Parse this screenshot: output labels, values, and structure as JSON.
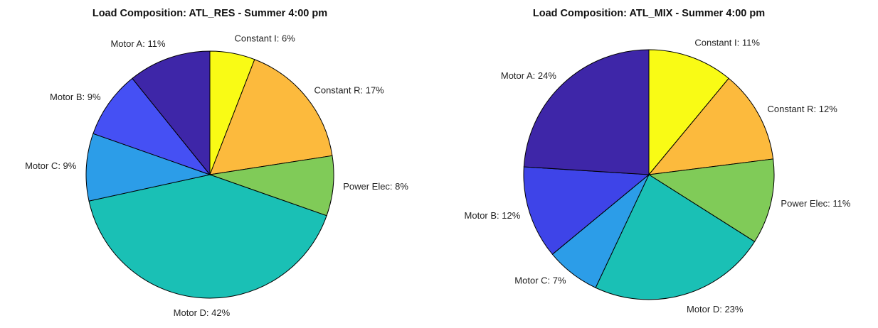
{
  "chart_data": [
    {
      "type": "pie",
      "title": "Load Composition: ATL_RES - Summer 4:00 pm",
      "values": [
        6,
        17,
        8,
        42,
        9,
        9,
        11
      ],
      "value_labels": [
        "Constant I: 6%",
        "Constant R: 17%",
        "Power Elec: 8%",
        "Motor D: 42%",
        "Motor C: 9%",
        "Motor B: 9%",
        "Motor A: 11%"
      ],
      "colors": [
        "#f9fb15",
        "#fcba3d",
        "#80cb58",
        "#1ac0b5",
        "#2c9de8",
        "#4550f4",
        "#3e26a8"
      ]
    },
    {
      "type": "pie",
      "title": "Load Composition: ATL_MIX - Summer 4:00 pm",
      "values": [
        11,
        12,
        11,
        23,
        7,
        12,
        24
      ],
      "value_labels": [
        "Constant I: 11%",
        "Constant R: 12%",
        "Power Elec: 11%",
        "Motor D: 23%",
        "Motor C: 7%",
        "Motor B: 12%",
        "Motor A: 24%"
      ],
      "colors": [
        "#f9fb15",
        "#fcba3d",
        "#80cb58",
        "#1ac0b5",
        "#2c9de8",
        "#3e44e8",
        "#3e26a8"
      ]
    }
  ]
}
